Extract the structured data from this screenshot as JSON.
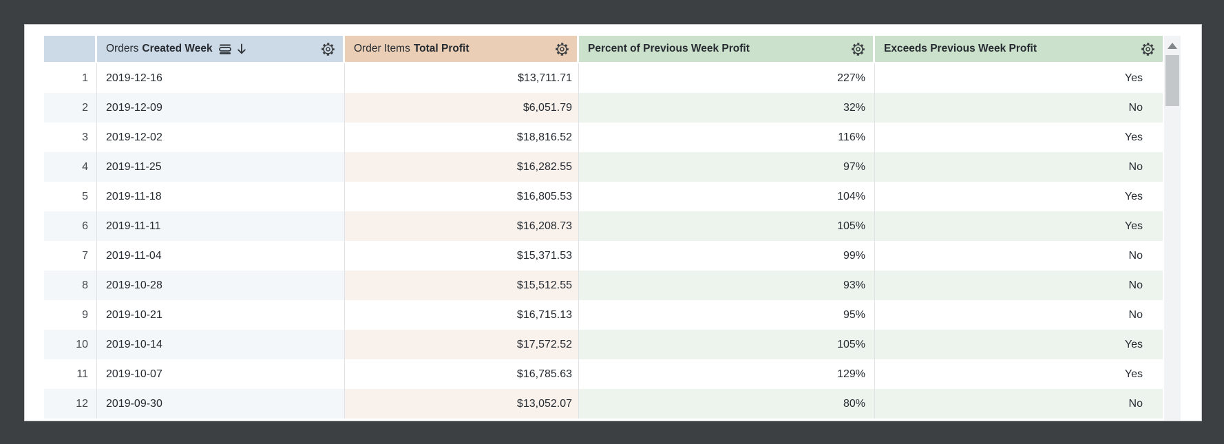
{
  "colors": {
    "frame_bg": "#3c4043",
    "card_bg": "#ffffff",
    "card_border": "#c9ccce",
    "header_blue": "#ccd9e6",
    "header_tan": "#eacfb6",
    "header_green": "#cbe1cb",
    "stripe_blue": "#f4f7fa",
    "stripe_tan": "#f9f2ec",
    "stripe_green": "#edf4ed",
    "grid_line": "#e0e2e5",
    "text": "#262b31",
    "rownum_text": "#44484c",
    "sb_track": "#f1f3f4",
    "sb_thumb": "#c4c7ca",
    "sb_arrow": "#82878c"
  },
  "icons": {
    "gear": "settings-gear",
    "sort_desc": "arrow-down",
    "granularity": "table-rows",
    "scroll_up": "triangle-up"
  },
  "table": {
    "headers": {
      "num": {
        "label": ""
      },
      "week": {
        "prefix": "Orders",
        "label": "Created Week",
        "sorted": "descending"
      },
      "profit": {
        "prefix": "Order Items",
        "label": "Total Profit"
      },
      "percent": {
        "label": "Percent of Previous Week Profit"
      },
      "exceeds": {
        "label": "Exceeds Previous Week Profit"
      }
    },
    "column_keys": [
      "num",
      "week",
      "profit",
      "percent",
      "exceeds"
    ],
    "rows": [
      {
        "num": "1",
        "week": "2019-12-16",
        "profit": "$13,711.71",
        "percent": "227%",
        "exceeds": "Yes"
      },
      {
        "num": "2",
        "week": "2019-12-09",
        "profit": "$6,051.79",
        "percent": "32%",
        "exceeds": "No"
      },
      {
        "num": "3",
        "week": "2019-12-02",
        "profit": "$18,816.52",
        "percent": "116%",
        "exceeds": "Yes"
      },
      {
        "num": "4",
        "week": "2019-11-25",
        "profit": "$16,282.55",
        "percent": "97%",
        "exceeds": "No"
      },
      {
        "num": "5",
        "week": "2019-11-18",
        "profit": "$16,805.53",
        "percent": "104%",
        "exceeds": "Yes"
      },
      {
        "num": "6",
        "week": "2019-11-11",
        "profit": "$16,208.73",
        "percent": "105%",
        "exceeds": "Yes"
      },
      {
        "num": "7",
        "week": "2019-11-04",
        "profit": "$15,371.53",
        "percent": "99%",
        "exceeds": "No"
      },
      {
        "num": "8",
        "week": "2019-10-28",
        "profit": "$15,512.55",
        "percent": "93%",
        "exceeds": "No"
      },
      {
        "num": "9",
        "week": "2019-10-21",
        "profit": "$16,715.13",
        "percent": "95%",
        "exceeds": "No"
      },
      {
        "num": "10",
        "week": "2019-10-14",
        "profit": "$17,572.52",
        "percent": "105%",
        "exceeds": "Yes"
      },
      {
        "num": "11",
        "week": "2019-10-07",
        "profit": "$16,785.63",
        "percent": "129%",
        "exceeds": "Yes"
      },
      {
        "num": "12",
        "week": "2019-09-30",
        "profit": "$13,052.07",
        "percent": "80%",
        "exceeds": "No"
      }
    ]
  }
}
